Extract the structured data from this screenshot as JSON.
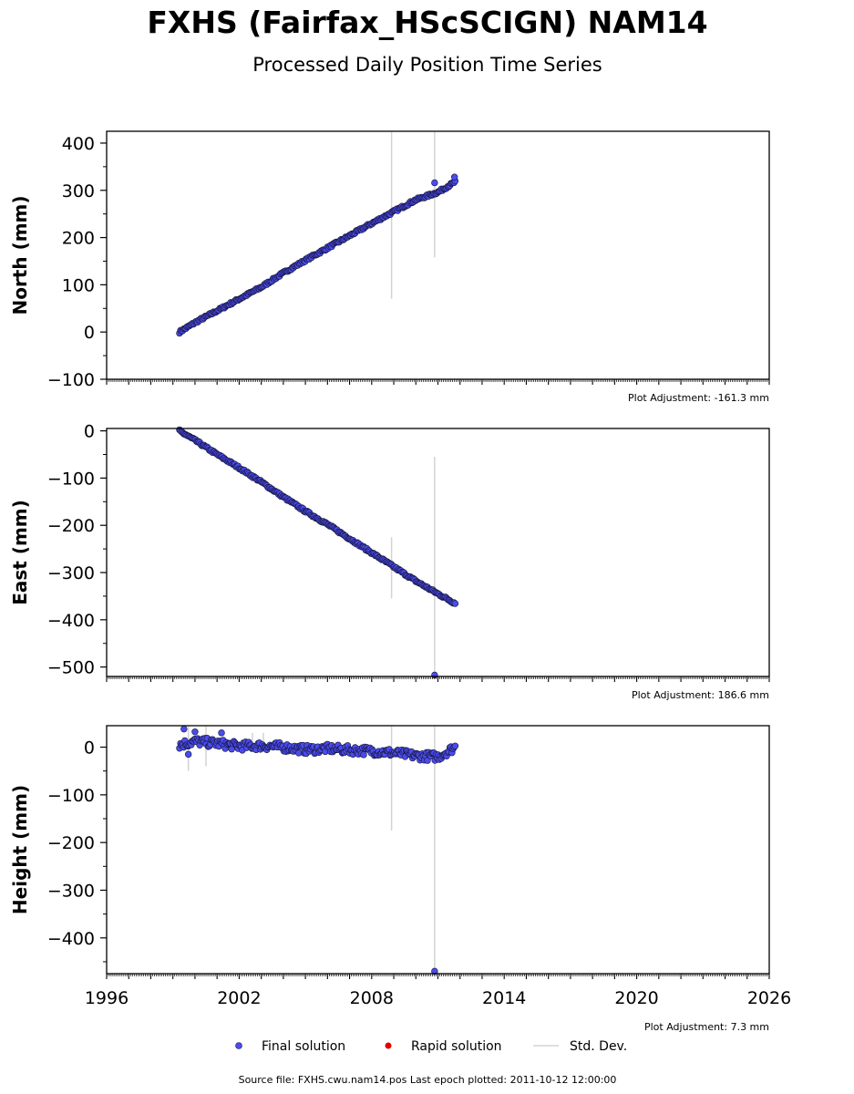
{
  "page": {
    "title": "FXHS (Fairfax_HScSCIGN) NAM14",
    "subtitle": "Processed Daily Position Time Series",
    "footer": "Source file: FXHS.cwu.nam14.pos  Last epoch plotted: 2011-10-12 12:00:00"
  },
  "legend": {
    "final": "Final solution",
    "rapid": "Rapid solution",
    "std": "Std. Dev."
  },
  "colors": {
    "final_fill": "#4b4bed",
    "final_edge": "#15153a",
    "rapid": "#e00000",
    "std": "#d3d3d3"
  },
  "chart_data": [
    {
      "type": "scatter",
      "ylabel": "North (mm)",
      "ylim": [
        -100,
        425
      ],
      "yticks": [
        -100,
        0,
        100,
        200,
        300,
        400
      ],
      "xlim": [
        1996,
        2026
      ],
      "adjustment": "Plot Adjustment: -161.3 mm",
      "series": [
        {
          "name": "Final solution",
          "x": [
            1999.3,
            2000.0,
            2001.0,
            2002.0,
            2003.0,
            2004.0,
            2005.0,
            2006.0,
            2007.0,
            2008.0,
            2009.0,
            2010.0,
            2011.0,
            2011.78
          ],
          "y": [
            0,
            20,
            45,
            70,
            95,
            125,
            152,
            178,
            204,
            230,
            255,
            280,
            296,
            318
          ],
          "noise": 2.5,
          "outliers": [
            [
              2010.85,
              316
            ],
            [
              2011.75,
              328
            ]
          ]
        }
      ],
      "std_dev": [
        [
          2008.9,
          70,
          425
        ],
        [
          2010.85,
          158,
          425
        ]
      ]
    },
    {
      "type": "scatter",
      "ylabel": "East (mm)",
      "ylim": [
        -520,
        5
      ],
      "yticks": [
        -500,
        -400,
        -300,
        -200,
        -100,
        0
      ],
      "xlim": [
        1996,
        2026
      ],
      "adjustment": "Plot Adjustment: 186.6 mm",
      "series": [
        {
          "name": "Final solution",
          "x": [
            1999.3,
            2000.0,
            2001.0,
            2002.0,
            2003.0,
            2004.0,
            2005.0,
            2006.0,
            2007.0,
            2008.0,
            2009.0,
            2010.0,
            2011.0,
            2011.78
          ],
          "y": [
            0,
            -20,
            -50,
            -78,
            -108,
            -140,
            -170,
            -198,
            -228,
            -258,
            -288,
            -318,
            -345,
            -365
          ],
          "noise": 2.5,
          "outliers": [
            [
              2010.85,
              -517
            ]
          ]
        }
      ],
      "std_dev": [
        [
          2008.9,
          -355,
          -225
        ],
        [
          2010.85,
          -520,
          -55
        ]
      ]
    },
    {
      "type": "scatter",
      "ylabel": "Height (mm)",
      "ylim": [
        -475,
        45
      ],
      "yticks": [
        -400,
        -300,
        -200,
        -100,
        0
      ],
      "xlim": [
        1996,
        2026
      ],
      "xticks": [
        1996,
        2002,
        2008,
        2014,
        2020,
        2026
      ],
      "adjustment": "Plot Adjustment: 7.3 mm",
      "series": [
        {
          "name": "Final solution",
          "x": [
            1999.3,
            2000.0,
            2001.0,
            2002.0,
            2003.0,
            2004.0,
            2005.0,
            2006.0,
            2007.0,
            2008.0,
            2009.0,
            2010.0,
            2011.0,
            2011.78
          ],
          "y": [
            5,
            12,
            8,
            2,
            3,
            0,
            -5,
            -3,
            -6,
            -8,
            -12,
            -18,
            -20,
            0
          ],
          "noise": 9,
          "outliers": [
            [
              1999.5,
              38
            ],
            [
              2001.2,
              30
            ],
            [
              2000.0,
              32
            ],
            [
              2010.85,
              -470
            ],
            [
              1999.7,
              -15
            ]
          ]
        }
      ],
      "std_dev": [
        [
          1999.7,
          -50,
          45
        ],
        [
          2000.5,
          -40,
          45
        ],
        [
          2002.6,
          -10,
          30
        ],
        [
          2003.1,
          -10,
          30
        ],
        [
          2008.9,
          -175,
          45
        ],
        [
          2010.85,
          -475,
          45
        ]
      ]
    }
  ]
}
